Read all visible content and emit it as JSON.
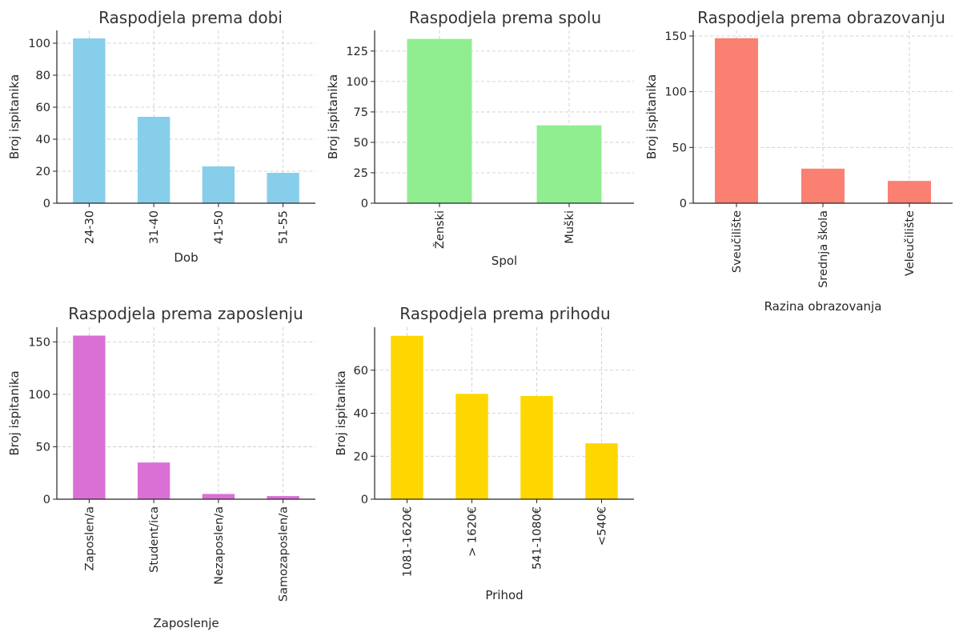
{
  "chart_data": [
    {
      "type": "bar",
      "title": "Raspodjela prema dobi",
      "xlabel": "Dob",
      "ylabel": "Broj ispitanika",
      "categories": [
        "24-30",
        "31-40",
        "41-50",
        "51-55"
      ],
      "values": [
        103,
        54,
        23,
        19
      ],
      "ylim": [
        0,
        108
      ],
      "yticks": [
        0,
        20,
        40,
        60,
        80,
        100
      ],
      "color": "#87CEEB",
      "grid": true,
      "legend": "none"
    },
    {
      "type": "bar",
      "title": "Raspodjela prema spolu",
      "xlabel": "Spol",
      "ylabel": "Broj ispitanika",
      "categories": [
        "Ženski",
        "Muški"
      ],
      "values": [
        135,
        64
      ],
      "ylim": [
        0,
        142
      ],
      "yticks": [
        0,
        25,
        50,
        75,
        100,
        125
      ],
      "color": "#90EE90",
      "grid": true,
      "legend": "none"
    },
    {
      "type": "bar",
      "title": "Raspodjela prema obrazovanju",
      "xlabel": "Razina obrazovanja",
      "ylabel": "Broj ispitanika",
      "categories": [
        "Sveučilište",
        "Srednja škola",
        "Veleučilište"
      ],
      "values": [
        148,
        31,
        20
      ],
      "ylim": [
        0,
        155
      ],
      "yticks": [
        0,
        50,
        100,
        150
      ],
      "color": "#FA8072",
      "grid": true,
      "legend": "none"
    },
    {
      "type": "bar",
      "title": "Raspodjela prema zaposlenju",
      "xlabel": "Zaposlenje",
      "ylabel": "Broj ispitanika",
      "categories": [
        "Zaposlen/a",
        "Student/ica",
        "Nezaposlen/a",
        "Samozaposlen/a"
      ],
      "values": [
        156,
        35,
        5,
        3
      ],
      "ylim": [
        0,
        164
      ],
      "yticks": [
        0,
        50,
        100,
        150
      ],
      "color": "#DA70D6",
      "grid": true,
      "legend": "none"
    },
    {
      "type": "bar",
      "title": "Raspodjela prema prihodu",
      "xlabel": "Prihod",
      "ylabel": "Broj ispitanika",
      "categories": [
        "1081-1620€",
        "> 1620€",
        "541-1080€",
        "<540€"
      ],
      "values": [
        76,
        49,
        48,
        26
      ],
      "ylim": [
        0,
        80
      ],
      "yticks": [
        0,
        20,
        40,
        60
      ],
      "color": "#FFD700",
      "grid": true,
      "legend": "none"
    }
  ]
}
